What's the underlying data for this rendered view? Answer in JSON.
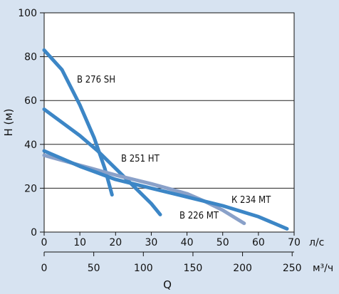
{
  "chart_data": {
    "type": "line",
    "xlabel": "Q",
    "ylabel": "H (м)",
    "xlim": [
      0,
      70
    ],
    "ylim": [
      0,
      100
    ],
    "x_ticks": [
      0,
      10,
      20,
      30,
      40,
      50,
      60,
      70
    ],
    "y_ticks": [
      0,
      20,
      40,
      60,
      80,
      100
    ],
    "x_unit_top": "л/с",
    "x_secondary_ticks": [
      0,
      50,
      100,
      150,
      200,
      250
    ],
    "x_unit_bottom": "м³/ч",
    "grid": "horizontal",
    "series": [
      {
        "name": "В 276 SH",
        "color": "#3c86c6",
        "x": [
          0,
          5,
          10,
          14,
          17,
          19
        ],
        "y": [
          83,
          74,
          58,
          43,
          29,
          17
        ]
      },
      {
        "name": "В 251 HT",
        "color": "#3c86c6",
        "x": [
          0,
          5,
          10,
          15,
          20,
          25,
          30,
          32.5
        ],
        "y": [
          56,
          50,
          44,
          37,
          29,
          21,
          13,
          8
        ]
      },
      {
        "name": "В 226 MT",
        "color": "#8aa1c9",
        "x": [
          0,
          10,
          20,
          30,
          40,
          45,
          50,
          56
        ],
        "y": [
          35,
          30.5,
          26,
          22,
          17.5,
          14,
          10,
          4
        ]
      },
      {
        "name": "К 234 MT",
        "color": "#3c86c6",
        "x": [
          0,
          10,
          20,
          30,
          40,
          50,
          60,
          68
        ],
        "y": [
          37,
          30,
          24,
          20,
          16,
          12,
          7,
          1.5
        ]
      }
    ]
  }
}
